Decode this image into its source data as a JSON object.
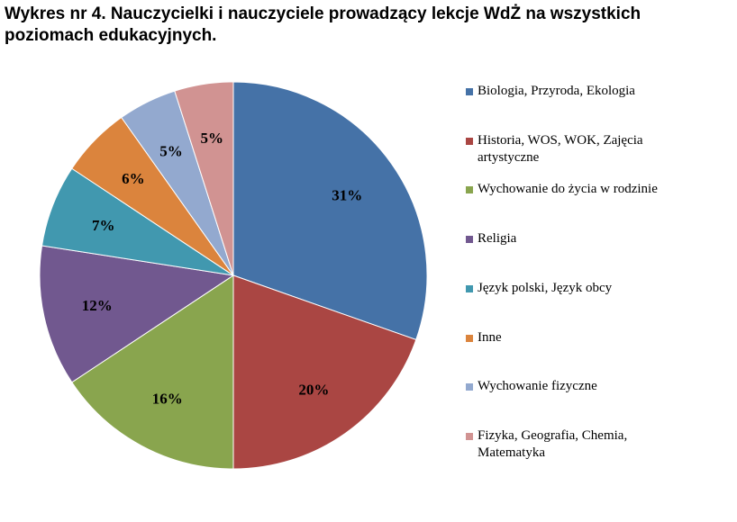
{
  "chart_data": {
    "type": "pie",
    "title": "Wykres nr 4. Nauczycielki i nauczyciele prowadzący lekcje WdŻ na wszystkich poziomach edukacyjnych.",
    "legend_position": "right",
    "categories": [
      "Biologia, Przyroda, Ekologia",
      "Historia, WOS, WOK, Zajęcia artystyczne",
      "Wychowanie do życia w rodzinie",
      "Religia",
      "Język polski, Język obcy",
      "Inne",
      "Wychowanie fizyczne",
      "Fizyka, Geografia, Chemia, Matematyka"
    ],
    "values": [
      31,
      20,
      16,
      12,
      7,
      6,
      5,
      5
    ],
    "data_labels": [
      "31%",
      "20%",
      "16%",
      "12%",
      "7%",
      "6%",
      "5%",
      "5%"
    ],
    "colors": [
      "#4572A7",
      "#AA4643",
      "#89A54E",
      "#71588F",
      "#4198AF",
      "#DB843D",
      "#93A9CF",
      "#D19392"
    ]
  }
}
